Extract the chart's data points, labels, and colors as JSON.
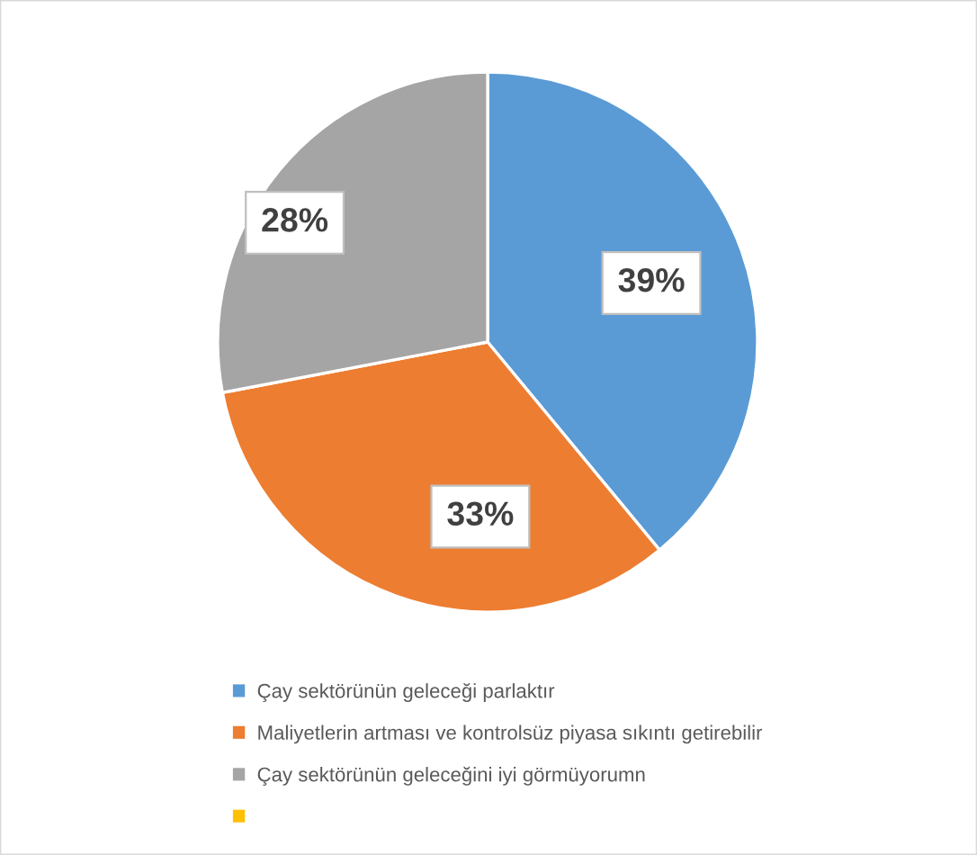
{
  "chart_data": {
    "type": "pie",
    "categories": [
      "Çay sektörünün geleceği parlaktır",
      "Maliyetlerin artması ve kontrolsüz piyasa sıkıntı getirebilir",
      "Çay sektörünün geleceğini iyi görmüyorumn",
      null
    ],
    "values": [
      39,
      33,
      28,
      0
    ],
    "colors": [
      "#5b9bd5",
      "#ed7d31",
      "#a5a5a5",
      "#ffc000"
    ],
    "value_labels": [
      "39%",
      "33%",
      "28%",
      null
    ],
    "legend": "bottom left"
  }
}
